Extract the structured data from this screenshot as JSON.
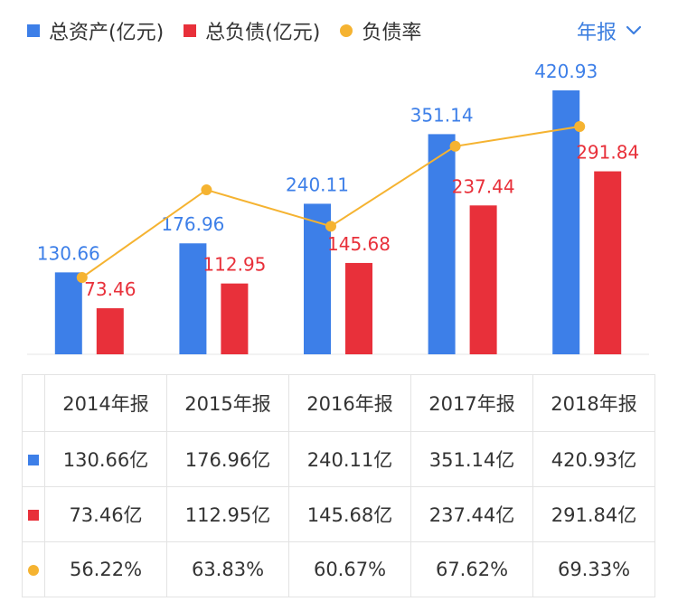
{
  "header": {
    "legend": [
      {
        "label": "总资产(亿元)",
        "color": "#3d7fe8",
        "shape": "square"
      },
      {
        "label": "总负债(亿元)",
        "color": "#e8303a",
        "shape": "square"
      },
      {
        "label": "负债率",
        "color": "#f5b331",
        "shape": "dot"
      }
    ],
    "period_label": "年报",
    "period_icon": "chevron-down-icon"
  },
  "chart_data": {
    "type": "bar",
    "categories": [
      "2014年报",
      "2015年报",
      "2016年报",
      "2017年报",
      "2018年报"
    ],
    "series": [
      {
        "name": "总资产(亿元)",
        "type": "bar",
        "color": "#3d7fe8",
        "values": [
          130.66,
          176.96,
          240.11,
          351.14,
          420.93
        ]
      },
      {
        "name": "总负债(亿元)",
        "type": "bar",
        "color": "#e8303a",
        "values": [
          73.46,
          112.95,
          145.68,
          237.44,
          291.84
        ]
      },
      {
        "name": "负债率",
        "type": "line",
        "color": "#f5b331",
        "values": [
          56.22,
          63.83,
          60.67,
          67.62,
          69.33
        ],
        "unit": "%"
      }
    ],
    "grid": false,
    "legend_position": "top-left"
  },
  "table": {
    "columns": [
      "2014年报",
      "2015年报",
      "2016年报",
      "2017年报",
      "2018年报"
    ],
    "rows": [
      {
        "marker": "square",
        "color": "#3d7fe8",
        "cells": [
          "130.66亿",
          "176.96亿",
          "240.11亿",
          "351.14亿",
          "420.93亿"
        ]
      },
      {
        "marker": "square",
        "color": "#e8303a",
        "cells": [
          "73.46亿",
          "112.95亿",
          "145.68亿",
          "237.44亿",
          "291.84亿"
        ]
      },
      {
        "marker": "dot",
        "color": "#f5b331",
        "cells": [
          "56.22%",
          "63.83%",
          "60.67%",
          "67.62%",
          "69.33%"
        ]
      }
    ]
  }
}
